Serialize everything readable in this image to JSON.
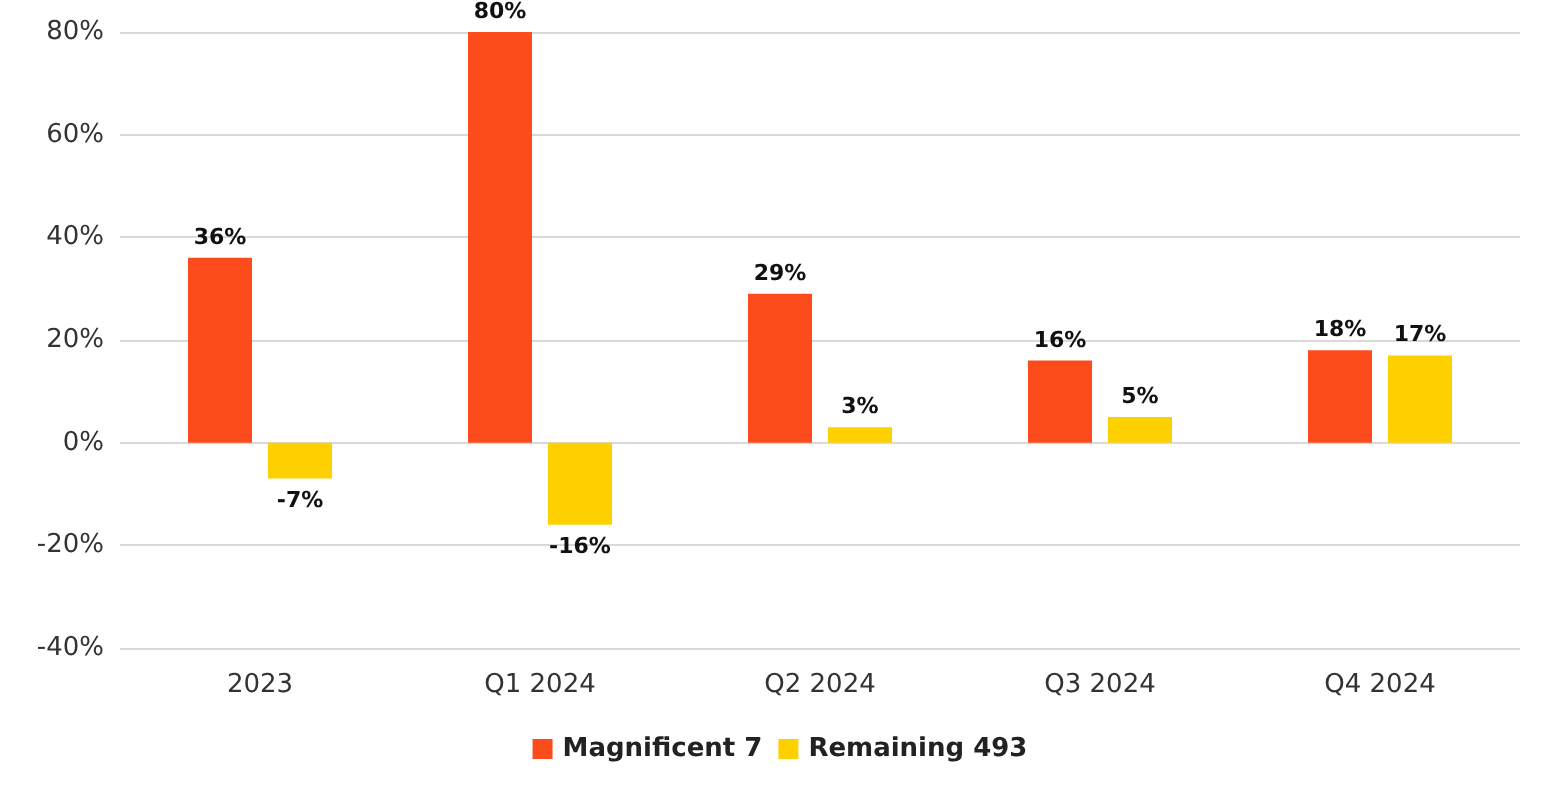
{
  "chart_data": {
    "type": "bar",
    "categories": [
      "2023",
      "Q1 2024",
      "Q2 2024",
      "Q3 2024",
      "Q4 2024"
    ],
    "series": [
      {
        "name": "Magnificent 7",
        "color": "#fc4c1c",
        "values": [
          36,
          80,
          29,
          16,
          18
        ],
        "value_labels": [
          "36%",
          "80%",
          "29%",
          "16%",
          "18%"
        ]
      },
      {
        "name": "Remaining 493",
        "color": "#ffd000",
        "values": [
          -7,
          -16,
          3,
          5,
          17
        ],
        "value_labels": [
          "-7%",
          "-16%",
          "3%",
          "5%",
          "17%"
        ]
      }
    ],
    "ylim": [
      -40,
      80
    ],
    "yticks": [
      {
        "value": -40,
        "label": "-40%"
      },
      {
        "value": -20,
        "label": "-20%"
      },
      {
        "value": 0,
        "label": "0%"
      },
      {
        "value": 20,
        "label": "20%"
      },
      {
        "value": 40,
        "label": "40%"
      },
      {
        "value": 60,
        "label": "60%"
      },
      {
        "value": 80,
        "label": "80%"
      }
    ],
    "grid": "y",
    "legend": "bottom"
  }
}
